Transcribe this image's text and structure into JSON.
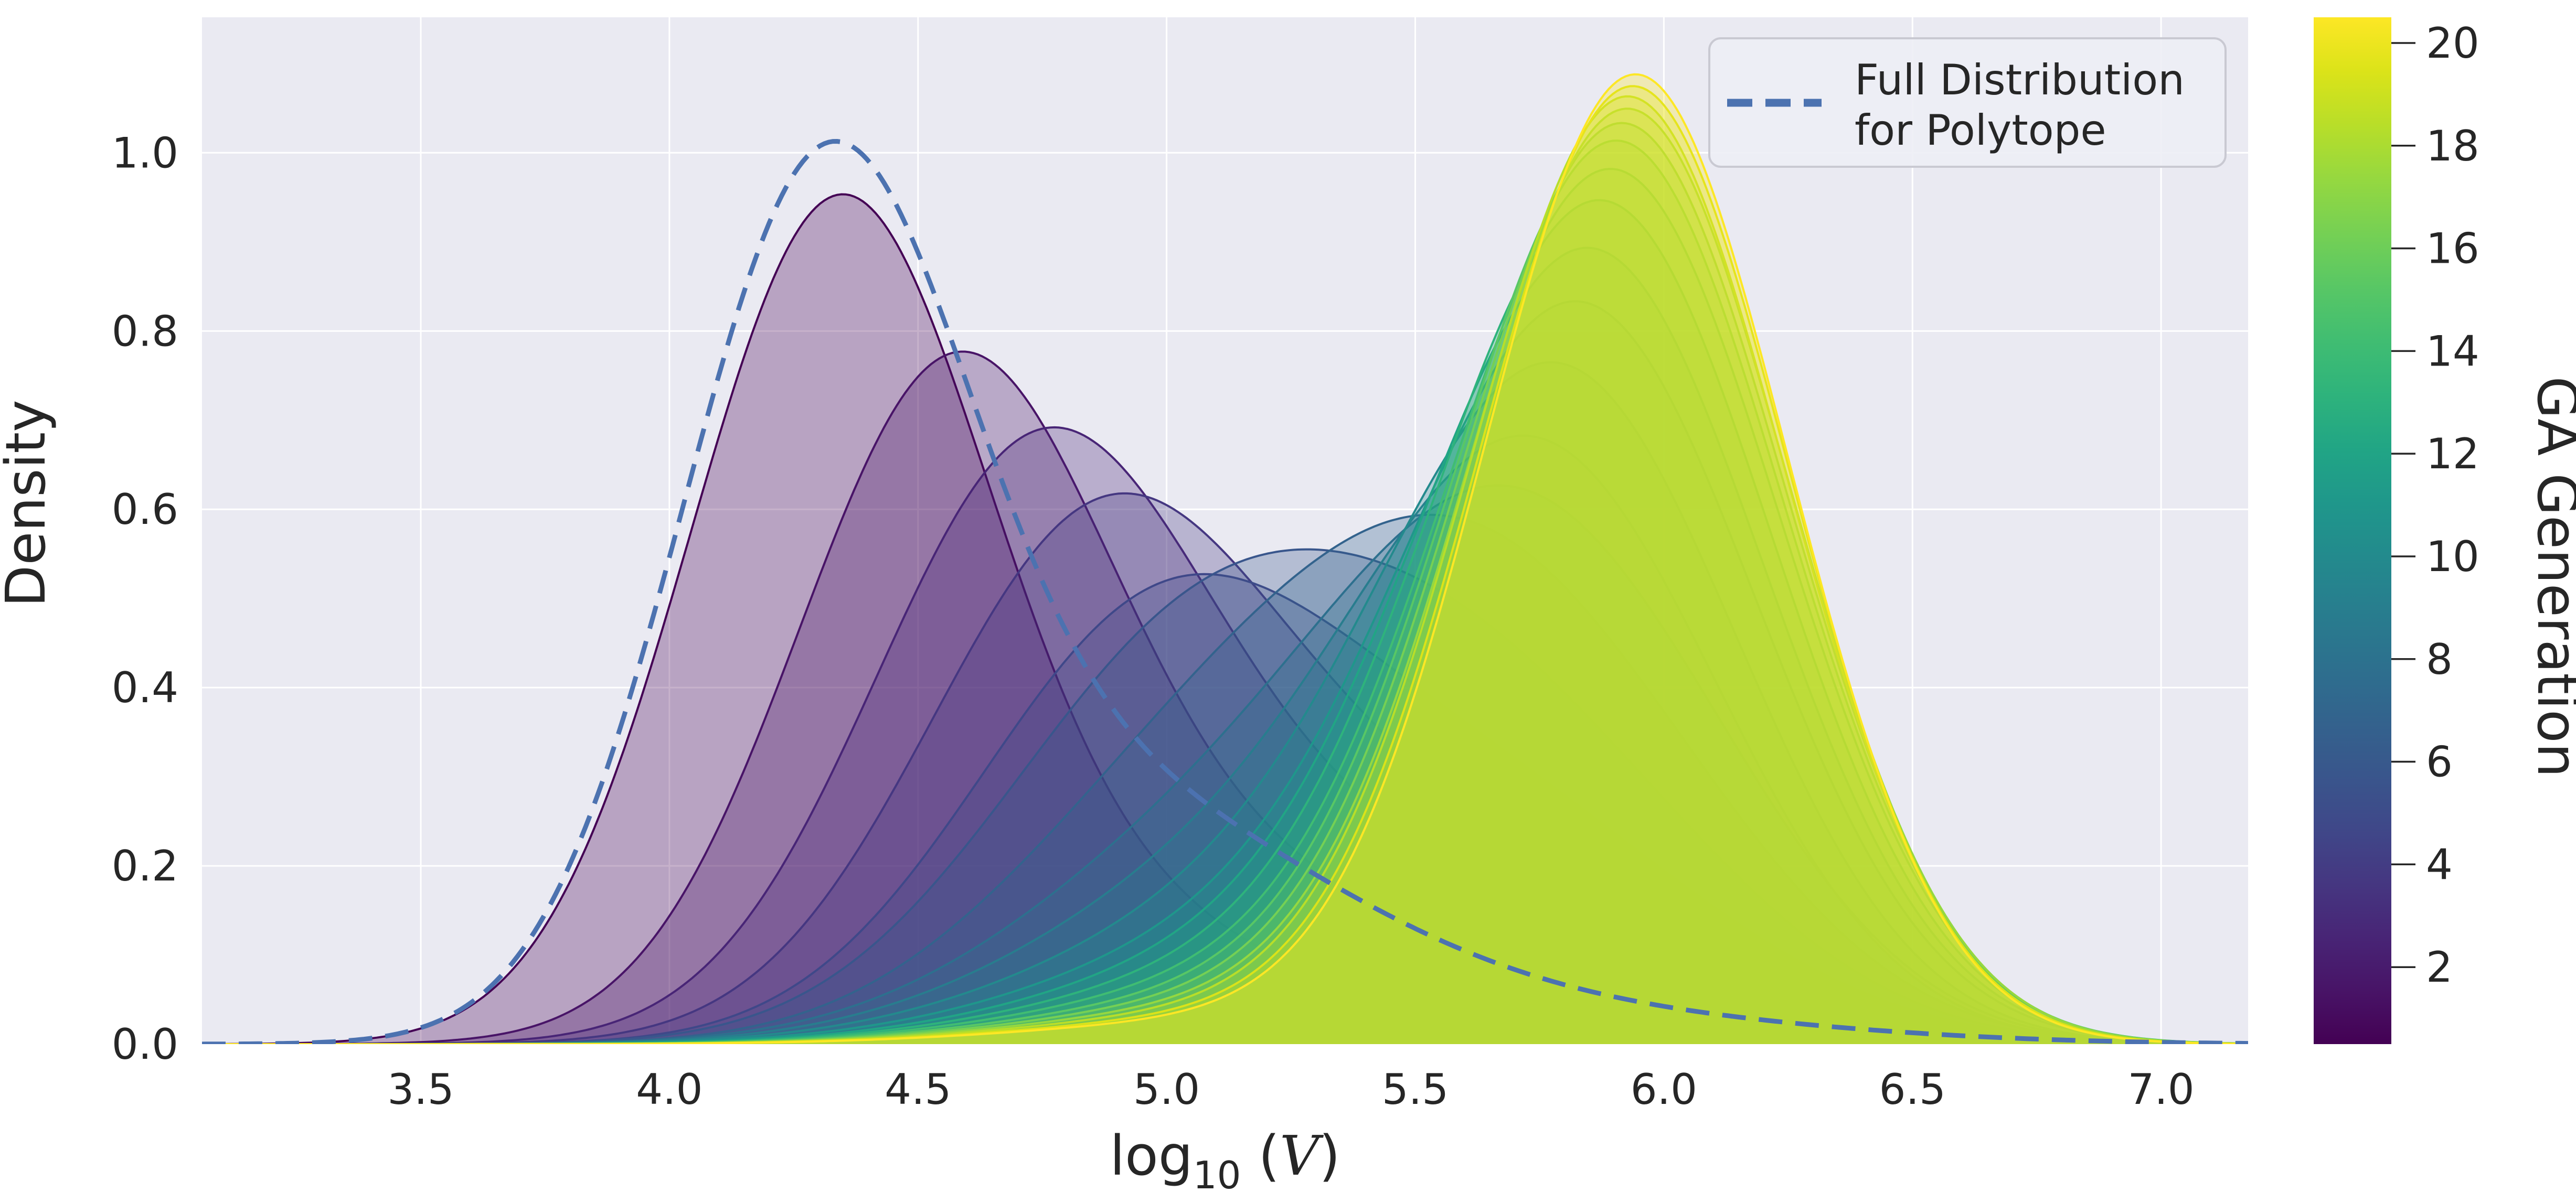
{
  "chart_data": {
    "type": "area",
    "description": "Overlapping kernel density estimates of log10 polytope volume for each GA generation (1-20, viridis colormap), plus dashed reference density for the full polytope distribution.",
    "title": "",
    "xlabel": "log₁₀ (𝒱)",
    "xlabel_parts": {
      "prefix": "log",
      "sub": "10",
      "mid": " (",
      "symbol": "V",
      "close": ")"
    },
    "ylabel": "Density",
    "xlim": [
      3.06,
      7.175
    ],
    "ylim": [
      0,
      1.152
    ],
    "grid": true,
    "x_ticks": {
      "values": [
        3.5,
        4.0,
        4.5,
        5.0,
        5.5,
        6.0,
        6.5,
        7.0
      ],
      "labels": [
        "3.5",
        "4.0",
        "4.5",
        "5.0",
        "5.5",
        "6.0",
        "6.5",
        "7.0"
      ]
    },
    "y_ticks": {
      "values": [
        0.0,
        0.2,
        0.4,
        0.6,
        0.8,
        1.0
      ],
      "labels": [
        "0.0",
        "0.2",
        "0.4",
        "0.6",
        "0.8",
        "1.0"
      ]
    },
    "legend": {
      "lines": [
        "Full Distribution",
        "for Polytope"
      ],
      "line_color": "#4c72b0",
      "line_style": "dashed",
      "position": "upper right"
    },
    "colorbar": {
      "label": "GA Generation",
      "vmin": 0.5,
      "vmax": 20.5,
      "tick_values": [
        2,
        4,
        6,
        8,
        10,
        12,
        14,
        16,
        18,
        20
      ],
      "tick_labels": [
        "2",
        "4",
        "6",
        "8",
        "10",
        "12",
        "14",
        "16",
        "18",
        "20"
      ],
      "colormap": "viridis",
      "colors": [
        "#440154",
        "#481467",
        "#482576",
        "#453781",
        "#3f4889",
        "#39568c",
        "#33638d",
        "#2d708e",
        "#287d8e",
        "#238a8d",
        "#1f978b",
        "#21a585",
        "#2eb37c",
        "#40bd72",
        "#58c765",
        "#75d054",
        "#95d840",
        "#b8de29",
        "#dbe319",
        "#fde725"
      ]
    },
    "full_distribution": {
      "name": "Full Distribution for Polytope",
      "color": "#4c72b0",
      "style": "dashed",
      "peak": {
        "x": 4.32,
        "y": 1.01
      },
      "gaussian_components": [
        [
          4.3,
          0.285,
          0.9
        ],
        [
          4.75,
          0.38,
          0.185
        ],
        [
          5.15,
          0.42,
          0.115
        ],
        [
          5.85,
          0.5,
          0.028
        ]
      ]
    },
    "series": [
      {
        "generation": 1,
        "color": "#440154",
        "peak": {
          "x": 4.33,
          "y": 0.96
        },
        "gaussian_components": [
          [
            4.33,
            0.295,
            0.89
          ],
          [
            4.82,
            0.4,
            0.13
          ],
          [
            5.6,
            0.45,
            0.015
          ]
        ]
      },
      {
        "generation": 2,
        "color": "#481467",
        "peak": {
          "x": 4.56,
          "y": 0.81
        },
        "gaussian_components": [
          [
            4.56,
            0.31,
            0.7
          ],
          [
            5.1,
            0.44,
            0.155
          ],
          [
            5.75,
            0.45,
            0.03
          ]
        ]
      },
      {
        "generation": 3,
        "color": "#482576",
        "peak": {
          "x": 4.73,
          "y": 0.74
        },
        "gaussian_components": [
          [
            4.73,
            0.33,
            0.61
          ],
          [
            5.3,
            0.44,
            0.175
          ],
          [
            5.85,
            0.42,
            0.045
          ]
        ]
      },
      {
        "generation": 4,
        "color": "#453781",
        "peak": {
          "x": 4.85,
          "y": 0.63
        },
        "gaussian_components": [
          [
            4.85,
            0.345,
            0.53
          ],
          [
            5.42,
            0.42,
            0.195
          ],
          [
            5.92,
            0.4,
            0.06
          ]
        ]
      },
      {
        "generation": 5,
        "color": "#3f4889",
        "peak": {
          "x": 4.95,
          "y": 0.55
        },
        "gaussian_components": [
          [
            4.95,
            0.36,
            0.42
          ],
          [
            5.52,
            0.4,
            0.235
          ],
          [
            5.95,
            0.38,
            0.075
          ]
        ]
      },
      {
        "generation": 6,
        "color": "#39568c",
        "peak": {
          "x": 5.56,
          "y": 0.5
        },
        "gaussian_components": [
          [
            5.0,
            0.375,
            0.37
          ],
          [
            5.56,
            0.385,
            0.345
          ],
          [
            6.0,
            0.35,
            0.085
          ]
        ]
      },
      {
        "generation": 7,
        "color": "#33638d",
        "peak": {
          "x": 5.62,
          "y": 0.55
        },
        "gaussian_components": [
          [
            5.06,
            0.39,
            0.27
          ],
          [
            5.62,
            0.375,
            0.45
          ],
          [
            6.05,
            0.33,
            0.09
          ]
        ]
      },
      {
        "generation": 8,
        "color": "#2d708e",
        "peak": {
          "x": 5.7,
          "y": 0.62
        },
        "gaussian_components": [
          [
            5.1,
            0.41,
            0.205
          ],
          [
            5.7,
            0.365,
            0.52
          ],
          [
            6.1,
            0.31,
            0.08
          ]
        ]
      },
      {
        "generation": 9,
        "color": "#287d8e",
        "peak": {
          "x": 5.76,
          "y": 0.7
        },
        "gaussian_components": [
          [
            5.13,
            0.42,
            0.165
          ],
          [
            5.76,
            0.36,
            0.625
          ]
        ]
      },
      {
        "generation": 10,
        "color": "#238a8d",
        "peak": {
          "x": 5.8,
          "y": 0.79
        },
        "gaussian_components": [
          [
            5.16,
            0.43,
            0.13
          ],
          [
            5.8,
            0.355,
            0.72
          ]
        ]
      },
      {
        "generation": 11,
        "color": "#1f978b",
        "peak": {
          "x": 5.84,
          "y": 0.86
        },
        "gaussian_components": [
          [
            5.18,
            0.43,
            0.105
          ],
          [
            5.84,
            0.35,
            0.8
          ]
        ]
      },
      {
        "generation": 12,
        "color": "#21a585",
        "peak": {
          "x": 5.86,
          "y": 0.92
        },
        "gaussian_components": [
          [
            5.2,
            0.43,
            0.09
          ],
          [
            5.86,
            0.345,
            0.865
          ]
        ]
      },
      {
        "generation": 13,
        "color": "#2eb37c",
        "peak": {
          "x": 5.88,
          "y": 0.96
        },
        "gaussian_components": [
          [
            5.2,
            0.43,
            0.075
          ],
          [
            5.88,
            0.34,
            0.925
          ]
        ]
      },
      {
        "generation": 14,
        "color": "#40bd72",
        "peak": {
          "x": 5.9,
          "y": 0.99
        },
        "gaussian_components": [
          [
            5.2,
            0.43,
            0.063
          ],
          [
            5.9,
            0.335,
            0.965
          ]
        ]
      },
      {
        "generation": 15,
        "color": "#58c765",
        "peak": {
          "x": 5.91,
          "y": 1.02
        },
        "gaussian_components": [
          [
            5.2,
            0.43,
            0.053
          ],
          [
            5.91,
            0.33,
            1.0
          ]
        ]
      },
      {
        "generation": 16,
        "color": "#75d054",
        "peak": {
          "x": 5.92,
          "y": 1.04
        },
        "gaussian_components": [
          [
            5.2,
            0.43,
            0.046
          ],
          [
            5.92,
            0.325,
            1.022
          ]
        ]
      },
      {
        "generation": 17,
        "color": "#95d840",
        "peak": {
          "x": 5.93,
          "y": 1.05
        },
        "gaussian_components": [
          [
            5.2,
            0.43,
            0.04
          ],
          [
            5.93,
            0.32,
            1.04
          ]
        ]
      },
      {
        "generation": 18,
        "color": "#b8de29",
        "peak": {
          "x": 5.93,
          "y": 1.07
        },
        "gaussian_components": [
          [
            5.2,
            0.43,
            0.035
          ],
          [
            5.93,
            0.315,
            1.055
          ]
        ]
      },
      {
        "generation": 19,
        "color": "#dbe319",
        "peak": {
          "x": 5.94,
          "y": 1.08
        },
        "gaussian_components": [
          [
            5.2,
            0.43,
            0.03
          ],
          [
            5.94,
            0.31,
            1.068
          ]
        ]
      },
      {
        "generation": 20,
        "color": "#fde725",
        "peak": {
          "x": 5.95,
          "y": 1.1
        },
        "gaussian_components": [
          [
            5.2,
            0.43,
            0.027
          ],
          [
            5.945,
            0.305,
            1.082
          ]
        ]
      }
    ]
  },
  "style": {
    "figure_bg": "#ffffff",
    "axes_bg": "#eaeaf2",
    "grid_color": "#ffffff",
    "text_color": "#262626",
    "fill_alpha": 0.3,
    "legend_bg": "#edeef5",
    "legend_border": "#c9c9d2"
  }
}
